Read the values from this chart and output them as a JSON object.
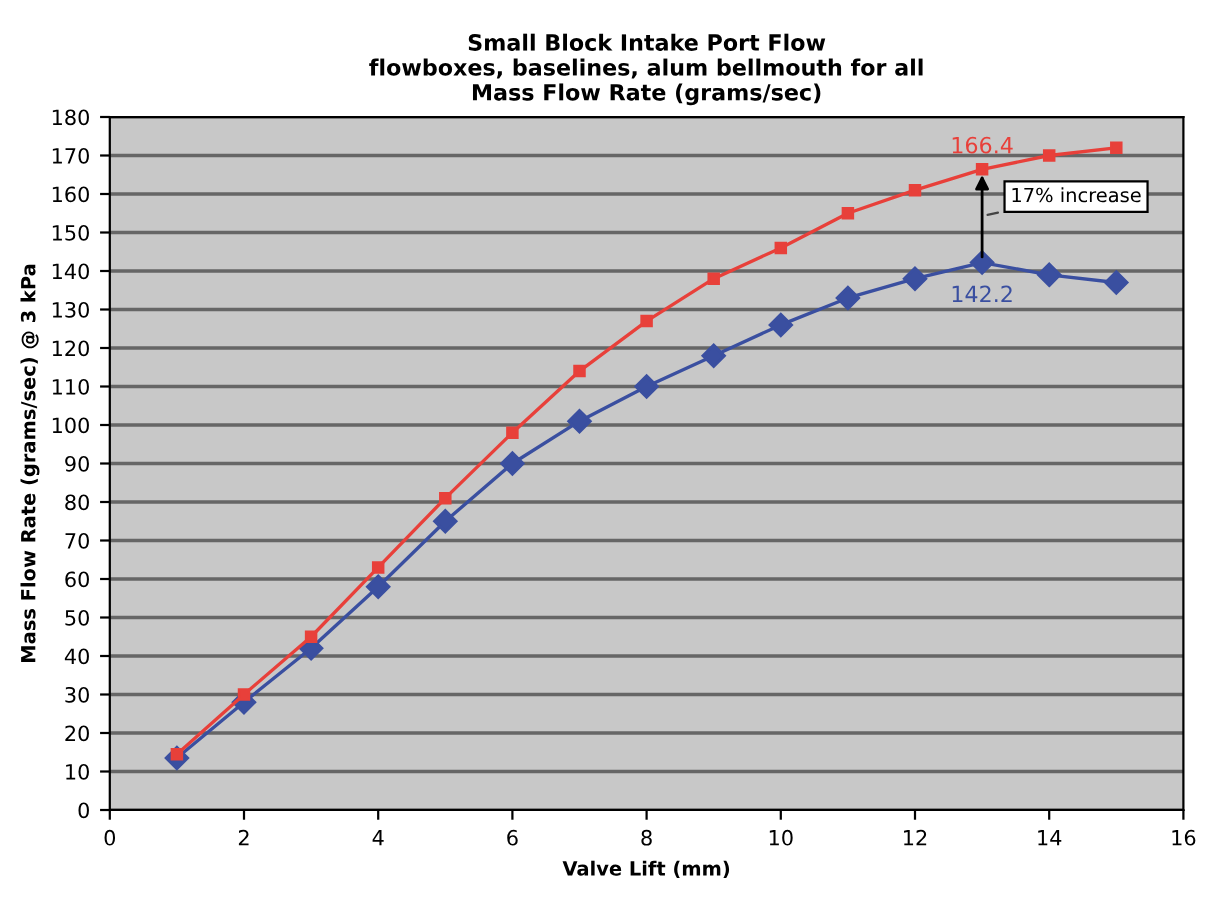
{
  "chart_data": {
    "type": "line",
    "title": "Small Block Intake Port Flow\nflowboxes, baselines, alum bellmouth for all\nMass Flow Rate (grams/sec)",
    "xlabel": "Valve Lift (mm)",
    "ylabel": "Mass Flow Rate (grams/sec) @ 3 kPa",
    "x": [
      1,
      2,
      3,
      4,
      5,
      6,
      7,
      8,
      9,
      10,
      11,
      12,
      13,
      14,
      15
    ],
    "series": [
      {
        "color": "#3a4fa0",
        "marker": "diamond",
        "values": [
          13.5,
          28,
          42,
          58,
          75,
          90,
          101,
          110,
          118,
          126,
          133,
          138,
          142.2,
          139,
          137
        ],
        "value_labels": [
          null,
          null,
          null,
          null,
          null,
          null,
          null,
          null,
          null,
          null,
          null,
          null,
          "142.2",
          null,
          null
        ]
      },
      {
        "color": "#e8403a",
        "marker": "square",
        "values": [
          14.5,
          30,
          45,
          63,
          81,
          98,
          114,
          127,
          138,
          146,
          155,
          161,
          166.4,
          170,
          172
        ],
        "value_labels": [
          null,
          null,
          null,
          null,
          null,
          null,
          null,
          null,
          null,
          null,
          null,
          null,
          "166.4",
          null,
          null
        ]
      }
    ],
    "annotations": [
      "17% increase"
    ],
    "xlim": [
      0,
      16
    ],
    "xticks": [
      0,
      2,
      4,
      6,
      8,
      10,
      12,
      14,
      16
    ],
    "ylim": [
      0,
      180
    ],
    "yticks": [
      0,
      10,
      20,
      30,
      40,
      50,
      60,
      70,
      80,
      90,
      100,
      110,
      120,
      130,
      140,
      150,
      160,
      170,
      180
    ],
    "grid": "y",
    "line_style": "solid"
  }
}
